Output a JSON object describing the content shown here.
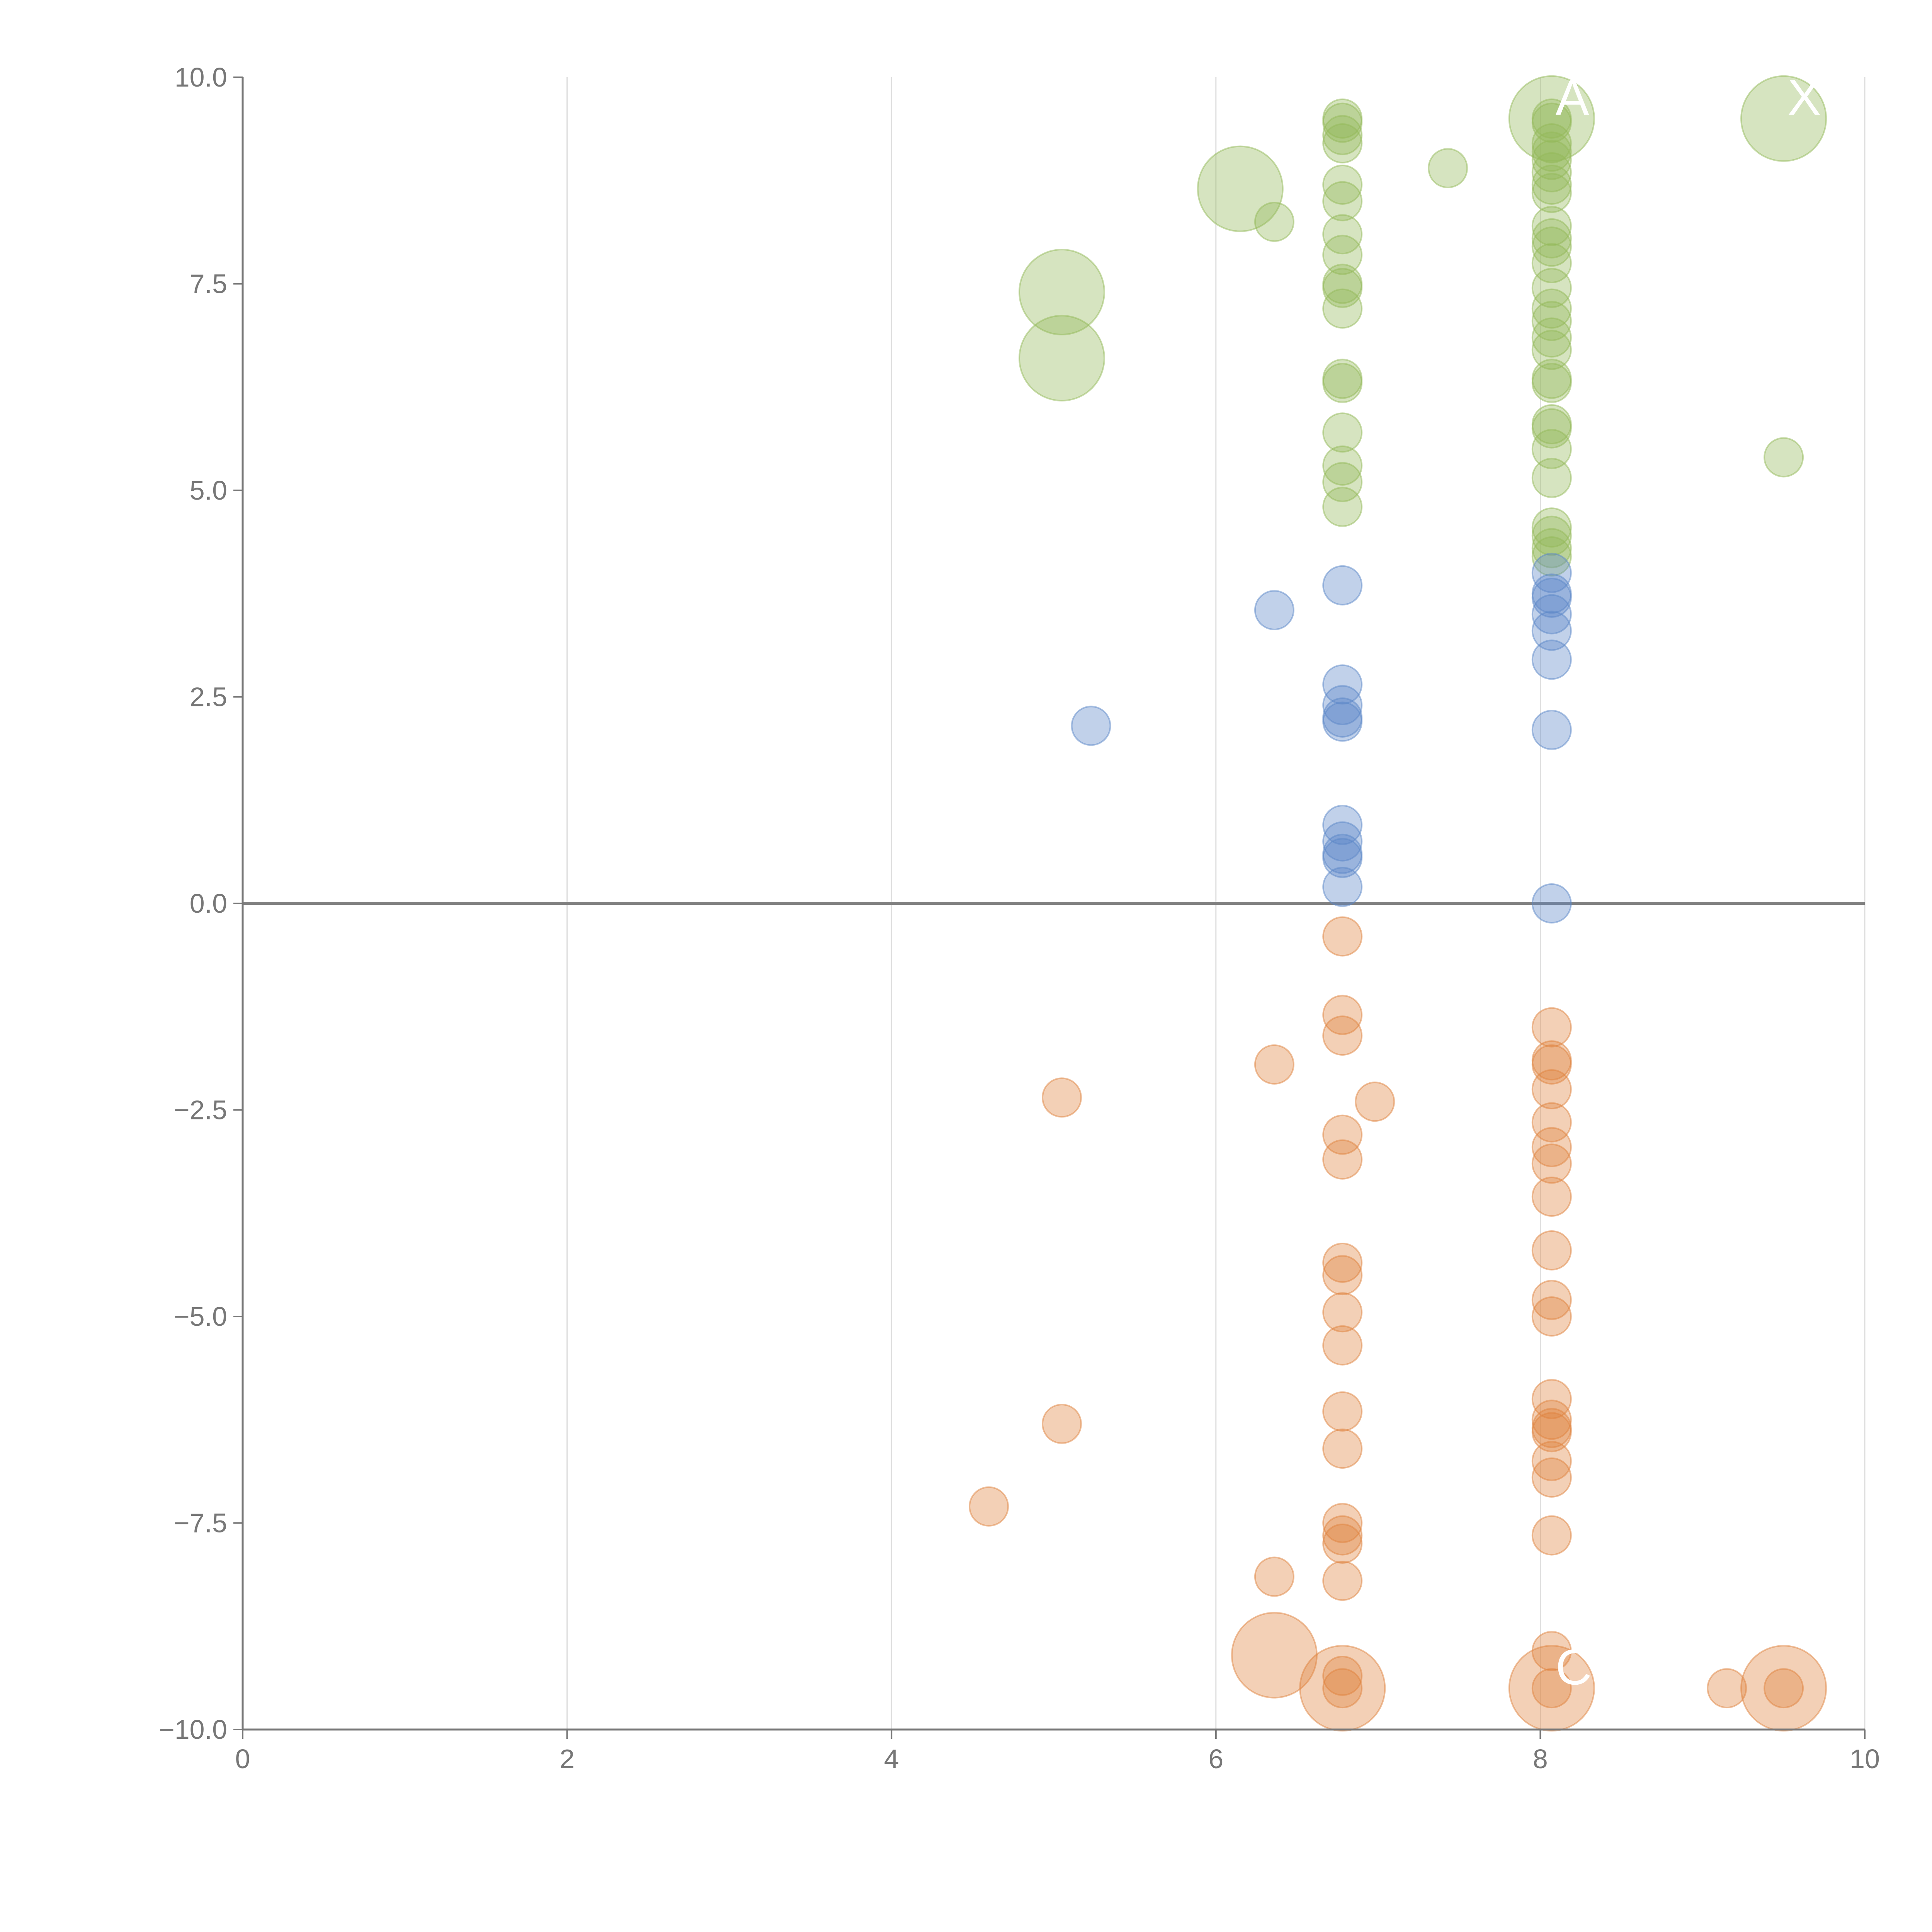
{
  "chart_data": {
    "type": "scatter",
    "title": "",
    "xlabel": "",
    "ylabel": "",
    "xlim": [
      0,
      10
    ],
    "ylim": [
      -10,
      10
    ],
    "x_ticks": [
      {
        "value": 0,
        "label": "0"
      },
      {
        "value": 2,
        "label": "2"
      },
      {
        "value": 4,
        "label": "4"
      },
      {
        "value": 6,
        "label": "6"
      },
      {
        "value": 8,
        "label": "8"
      },
      {
        "value": 10,
        "label": "10"
      }
    ],
    "y_ticks": [
      {
        "value": 10,
        "label": "10.0"
      },
      {
        "value": 7.5,
        "label": "7.5"
      },
      {
        "value": 5,
        "label": "5.0"
      },
      {
        "value": 2.5,
        "label": "2.5"
      },
      {
        "value": 0,
        "label": "0.0"
      },
      {
        "value": -2.5,
        "label": "−2.5"
      },
      {
        "value": -5,
        "label": "−5.0"
      },
      {
        "value": -7.5,
        "label": "−7.5"
      },
      {
        "value": -10,
        "label": "−10.0"
      }
    ],
    "grid": "vertical",
    "zero_line": true,
    "colors": {
      "green": "#93b95a",
      "blue": "#5b87c8",
      "orange": "#e0843f"
    },
    "series": [
      {
        "color": "green",
        "points": [
          [
            6.78,
            9.5,
            1
          ],
          [
            6.78,
            9.45,
            1
          ],
          [
            6.78,
            9.3,
            1
          ],
          [
            6.78,
            9.2,
            1
          ],
          [
            6.78,
            8.7,
            1
          ],
          [
            6.78,
            8.5,
            1
          ],
          [
            6.78,
            8.1,
            1
          ],
          [
            6.78,
            7.85,
            1
          ],
          [
            6.78,
            7.5,
            1
          ],
          [
            6.78,
            7.45,
            1
          ],
          [
            6.78,
            7.2,
            1
          ],
          [
            6.78,
            6.35,
            1
          ],
          [
            6.78,
            6.3,
            1
          ],
          [
            6.78,
            5.7,
            1
          ],
          [
            6.78,
            5.3,
            1
          ],
          [
            6.78,
            5.1,
            1
          ],
          [
            6.78,
            4.8,
            1
          ],
          [
            8.07,
            9.5,
            1
          ],
          [
            8.07,
            9.45,
            1
          ],
          [
            8.07,
            9.2,
            1
          ],
          [
            8.07,
            9.1,
            1
          ],
          [
            8.07,
            9.0,
            1
          ],
          [
            8.07,
            8.85,
            1
          ],
          [
            8.07,
            8.7,
            1
          ],
          [
            8.07,
            8.6,
            1
          ],
          [
            8.07,
            8.2,
            1
          ],
          [
            8.07,
            8.05,
            1
          ],
          [
            8.07,
            7.95,
            1
          ],
          [
            8.07,
            7.75,
            1
          ],
          [
            8.07,
            7.45,
            1
          ],
          [
            8.07,
            7.2,
            1
          ],
          [
            8.07,
            7.05,
            1
          ],
          [
            8.07,
            6.85,
            1
          ],
          [
            8.07,
            6.7,
            1
          ],
          [
            8.07,
            6.35,
            1
          ],
          [
            8.07,
            6.3,
            1
          ],
          [
            8.07,
            5.8,
            1
          ],
          [
            8.07,
            5.75,
            1
          ],
          [
            8.07,
            5.5,
            1
          ],
          [
            8.07,
            5.15,
            1
          ],
          [
            8.07,
            4.55,
            1
          ],
          [
            8.07,
            4.45,
            1
          ],
          [
            8.07,
            4.3,
            1
          ],
          [
            8.07,
            4.2,
            1
          ],
          [
            8.07,
            9.5,
            2.2
          ],
          [
            9.5,
            9.5,
            2.2
          ],
          [
            7.43,
            8.9,
            1
          ],
          [
            6.15,
            8.65,
            2.2
          ],
          [
            6.36,
            8.25,
            1
          ],
          [
            5.05,
            7.4,
            2.2
          ],
          [
            5.05,
            6.6,
            2.2
          ],
          [
            9.5,
            5.4,
            1
          ]
        ]
      },
      {
        "color": "blue",
        "points": [
          [
            6.78,
            3.85,
            1
          ],
          [
            6.78,
            2.65,
            1
          ],
          [
            6.78,
            2.4,
            1
          ],
          [
            6.78,
            2.25,
            1
          ],
          [
            6.78,
            2.2,
            1
          ],
          [
            6.78,
            0.95,
            1
          ],
          [
            6.78,
            0.75,
            1
          ],
          [
            6.78,
            0.6,
            1
          ],
          [
            6.78,
            0.55,
            1
          ],
          [
            6.78,
            0.2,
            1
          ],
          [
            8.07,
            4.0,
            1
          ],
          [
            8.07,
            3.75,
            1
          ],
          [
            8.07,
            3.7,
            1
          ],
          [
            8.07,
            3.5,
            1
          ],
          [
            8.07,
            3.3,
            1
          ],
          [
            8.07,
            2.95,
            1
          ],
          [
            8.07,
            2.1,
            1
          ],
          [
            8.07,
            0.0,
            1
          ],
          [
            6.36,
            3.55,
            1
          ],
          [
            5.23,
            2.15,
            1
          ]
        ]
      },
      {
        "color": "orange",
        "points": [
          [
            6.78,
            -0.4,
            1
          ],
          [
            6.78,
            -1.35,
            1
          ],
          [
            6.78,
            -1.6,
            1
          ],
          [
            6.78,
            -2.8,
            1
          ],
          [
            6.78,
            -3.1,
            1
          ],
          [
            6.78,
            -4.35,
            1
          ],
          [
            6.78,
            -4.5,
            1
          ],
          [
            6.78,
            -4.95,
            1
          ],
          [
            6.78,
            -5.35,
            1
          ],
          [
            6.78,
            -6.15,
            1
          ],
          [
            6.78,
            -6.6,
            1
          ],
          [
            6.78,
            -7.5,
            1
          ],
          [
            6.78,
            -7.65,
            1
          ],
          [
            6.78,
            -7.75,
            1
          ],
          [
            6.78,
            -8.2,
            1
          ],
          [
            6.78,
            -9.35,
            1
          ],
          [
            6.78,
            -9.5,
            1
          ],
          [
            8.07,
            -1.5,
            1
          ],
          [
            8.07,
            -1.9,
            1
          ],
          [
            8.07,
            -1.95,
            1
          ],
          [
            8.07,
            -2.25,
            1
          ],
          [
            8.07,
            -2.65,
            1
          ],
          [
            8.07,
            -2.95,
            1
          ],
          [
            8.07,
            -3.15,
            1
          ],
          [
            8.07,
            -3.55,
            1
          ],
          [
            8.07,
            -4.2,
            1
          ],
          [
            8.07,
            -4.8,
            1
          ],
          [
            8.07,
            -5.0,
            1
          ],
          [
            8.07,
            -6.0,
            1
          ],
          [
            8.07,
            -6.25,
            1
          ],
          [
            8.07,
            -6.35,
            1
          ],
          [
            8.07,
            -6.4,
            1
          ],
          [
            8.07,
            -6.75,
            1
          ],
          [
            8.07,
            -6.95,
            1
          ],
          [
            8.07,
            -7.65,
            1
          ],
          [
            8.07,
            -9.05,
            1
          ],
          [
            8.07,
            -9.5,
            1
          ],
          [
            6.36,
            -1.95,
            1
          ],
          [
            6.98,
            -2.4,
            1
          ],
          [
            5.05,
            -2.35,
            1
          ],
          [
            5.05,
            -6.3,
            1
          ],
          [
            4.6,
            -7.3,
            1
          ],
          [
            6.36,
            -8.15,
            1
          ],
          [
            9.15,
            -9.5,
            1
          ],
          [
            9.5,
            -9.5,
            1
          ],
          [
            6.36,
            -9.1,
            2.2
          ],
          [
            6.78,
            -9.5,
            2.2
          ],
          [
            8.07,
            -9.5,
            2.2
          ],
          [
            9.5,
            -9.5,
            2.2
          ]
        ]
      }
    ],
    "annotations": [
      {
        "text": "A",
        "x": 8.07,
        "y": 9.5
      },
      {
        "text": "X",
        "x": 9.5,
        "y": 9.5
      },
      {
        "text": "C",
        "x": 8.07,
        "y": -9.5
      }
    ]
  }
}
